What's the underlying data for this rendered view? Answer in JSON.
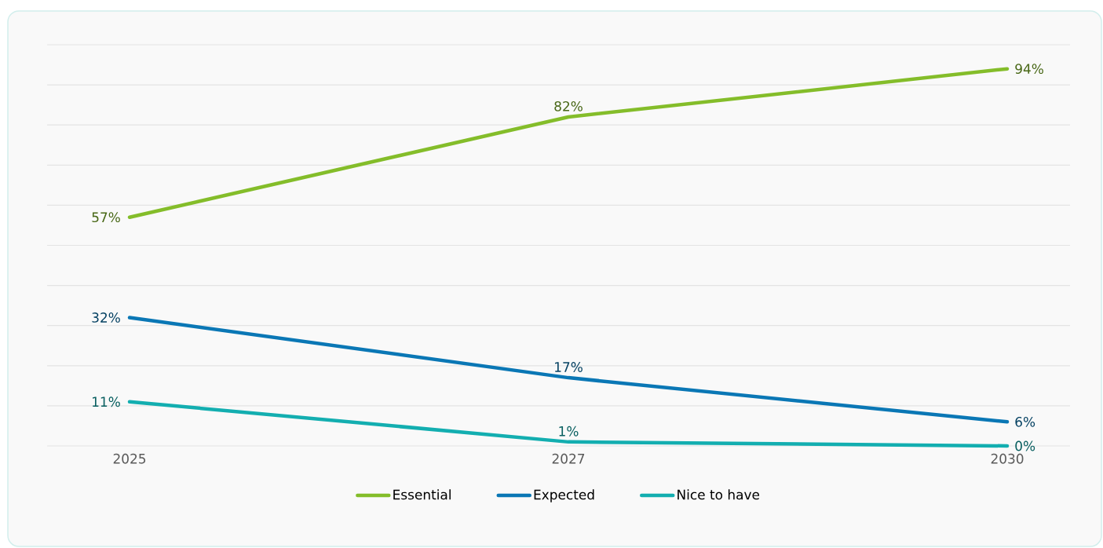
{
  "chart_data": {
    "type": "line",
    "categories": [
      "2025",
      "2027",
      "2030"
    ],
    "series": [
      {
        "name": "Essential",
        "color": "#84bd2a",
        "values": [
          57,
          82,
          94
        ],
        "value_labels": [
          "57%",
          "82%",
          "94%"
        ]
      },
      {
        "name": "Expected",
        "color": "#0a77b5",
        "values": [
          32,
          17,
          6
        ],
        "value_labels": [
          "32%",
          "17%",
          "6%"
        ]
      },
      {
        "name": "Nice to have",
        "color": "#13aeb0",
        "values": [
          11,
          1,
          0
        ],
        "value_labels": [
          "11%",
          "1%",
          "0%"
        ]
      }
    ],
    "ylim": [
      0,
      100
    ],
    "yticks": [
      {
        "value": 0,
        "label": null
      },
      {
        "value": 10,
        "label": null
      },
      {
        "value": 20,
        "label": null
      },
      {
        "value": 30,
        "label": null
      },
      {
        "value": 40,
        "label": null
      },
      {
        "value": 50,
        "label": null
      },
      {
        "value": 60,
        "label": null
      },
      {
        "value": 70,
        "label": null
      },
      {
        "value": 80,
        "label": null
      },
      {
        "value": 90,
        "label": null
      },
      {
        "value": 100,
        "label": null
      }
    ],
    "grid": "y",
    "legend": "bottom",
    "tick_labels": "x",
    "marker": "none",
    "line_style": "solid"
  }
}
